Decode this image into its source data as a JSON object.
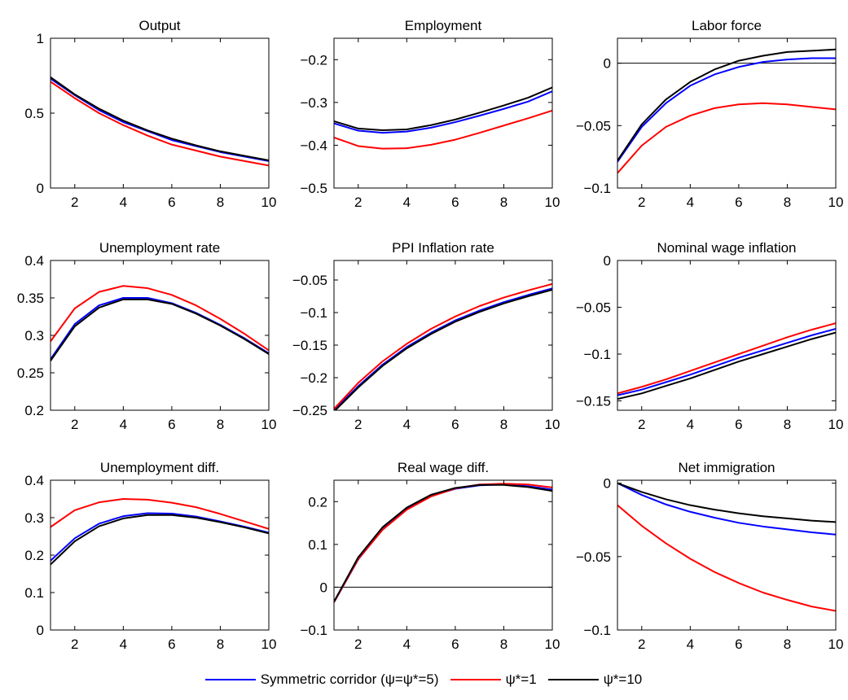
{
  "colors": {
    "blue": "#0000ff",
    "red": "#ff0000",
    "black": "#000000"
  },
  "legend": {
    "placement": "bottom",
    "items": [
      {
        "label": "Symmetric corridor (ψ=ψ*=5)",
        "color": "#0000ff"
      },
      {
        "label": "ψ*=1",
        "color": "#ff0000"
      },
      {
        "label": "ψ*=10",
        "color": "#000000"
      }
    ]
  },
  "chart_data": [
    {
      "type": "line",
      "title": "Output",
      "x": [
        1,
        2,
        3,
        4,
        5,
        6,
        7,
        8,
        9,
        10
      ],
      "xlim": [
        1,
        10
      ],
      "xticks": [
        2,
        4,
        6,
        8,
        10
      ],
      "xtick_labels": [
        "2",
        "4",
        "6",
        "8",
        "10"
      ],
      "ylim": [
        0,
        1
      ],
      "yticks": [
        0,
        0.5,
        1
      ],
      "ytick_labels": [
        "0",
        "0.5",
        "1"
      ],
      "zero_line": false,
      "series": [
        {
          "name": "Symmetric corridor (ψ=ψ*=5)",
          "color": "#0000ff",
          "values": [
            0.73,
            0.62,
            0.52,
            0.44,
            0.38,
            0.32,
            0.28,
            0.24,
            0.21,
            0.18
          ]
        },
        {
          "name": "ψ*=1",
          "color": "#ff0000",
          "values": [
            0.71,
            0.6,
            0.5,
            0.42,
            0.35,
            0.29,
            0.25,
            0.21,
            0.18,
            0.15
          ]
        },
        {
          "name": "ψ*=10",
          "color": "#000000",
          "values": [
            0.74,
            0.625,
            0.53,
            0.45,
            0.385,
            0.33,
            0.285,
            0.245,
            0.215,
            0.185
          ]
        }
      ]
    },
    {
      "type": "line",
      "title": "Employment",
      "x": [
        1,
        2,
        3,
        4,
        5,
        6,
        7,
        8,
        9,
        10
      ],
      "xlim": [
        1,
        10
      ],
      "xticks": [
        2,
        4,
        6,
        8,
        10
      ],
      "xtick_labels": [
        "2",
        "4",
        "6",
        "8",
        "10"
      ],
      "ylim": [
        -0.5,
        -0.15
      ],
      "yticks": [
        -0.5,
        -0.4,
        -0.3,
        -0.2
      ],
      "ytick_labels": [
        "−0.5",
        "−0.4",
        "−0.3",
        "−0.2"
      ],
      "zero_line": false,
      "series": [
        {
          "name": "Symmetric corridor (ψ=ψ*=5)",
          "color": "#0000ff",
          "values": [
            -0.349,
            -0.366,
            -0.371,
            -0.368,
            -0.359,
            -0.346,
            -0.331,
            -0.315,
            -0.298,
            -0.274
          ]
        },
        {
          "name": "ψ*=1",
          "color": "#ff0000",
          "values": [
            -0.382,
            -0.402,
            -0.408,
            -0.407,
            -0.399,
            -0.387,
            -0.371,
            -0.354,
            -0.337,
            -0.319
          ]
        },
        {
          "name": "ψ*=10",
          "color": "#000000",
          "values": [
            -0.344,
            -0.361,
            -0.365,
            -0.363,
            -0.353,
            -0.34,
            -0.324,
            -0.307,
            -0.289,
            -0.265
          ]
        }
      ]
    },
    {
      "type": "line",
      "title": "Labor force",
      "x": [
        1,
        2,
        3,
        4,
        5,
        6,
        7,
        8,
        9,
        10
      ],
      "xlim": [
        1,
        10
      ],
      "xticks": [
        2,
        4,
        6,
        8,
        10
      ],
      "xtick_labels": [
        "2",
        "4",
        "6",
        "8",
        "10"
      ],
      "ylim": [
        -0.1,
        0.02
      ],
      "yticks": [
        -0.1,
        -0.05,
        0
      ],
      "ytick_labels": [
        "−0.1",
        "−0.05",
        "0"
      ],
      "zero_line": true,
      "series": [
        {
          "name": "Symmetric corridor (ψ=ψ*=5)",
          "color": "#0000ff",
          "values": [
            -0.079,
            -0.051,
            -0.032,
            -0.018,
            -0.009,
            -0.003,
            0.001,
            0.003,
            0.004,
            0.004
          ]
        },
        {
          "name": "ψ*=1",
          "color": "#ff0000",
          "values": [
            -0.088,
            -0.066,
            -0.051,
            -0.042,
            -0.036,
            -0.033,
            -0.032,
            -0.033,
            -0.035,
            -0.037
          ]
        },
        {
          "name": "ψ*=10",
          "color": "#000000",
          "values": [
            -0.078,
            -0.049,
            -0.029,
            -0.015,
            -0.005,
            0.002,
            0.006,
            0.009,
            0.01,
            0.011
          ]
        }
      ]
    },
    {
      "type": "line",
      "title": "Unemployment rate",
      "x": [
        1,
        2,
        3,
        4,
        5,
        6,
        7,
        8,
        9,
        10
      ],
      "xlim": [
        1,
        10
      ],
      "xticks": [
        2,
        4,
        6,
        8,
        10
      ],
      "xtick_labels": [
        "2",
        "4",
        "6",
        "8",
        "10"
      ],
      "ylim": [
        0.2,
        0.4
      ],
      "yticks": [
        0.2,
        0.25,
        0.3,
        0.35,
        0.4
      ],
      "ytick_labels": [
        "0.2",
        "0.25",
        "0.3",
        "0.35",
        "0.4"
      ],
      "zero_line": false,
      "series": [
        {
          "name": "Symmetric corridor (ψ=ψ*=5)",
          "color": "#0000ff",
          "values": [
            0.268,
            0.315,
            0.34,
            0.35,
            0.35,
            0.343,
            0.33,
            0.314,
            0.296,
            0.276
          ]
        },
        {
          "name": "ψ*=1",
          "color": "#ff0000",
          "values": [
            0.292,
            0.336,
            0.358,
            0.366,
            0.363,
            0.354,
            0.34,
            0.322,
            0.302,
            0.28
          ]
        },
        {
          "name": "ψ*=10",
          "color": "#000000",
          "values": [
            0.266,
            0.312,
            0.337,
            0.348,
            0.348,
            0.342,
            0.329,
            0.313,
            0.295,
            0.275
          ]
        }
      ]
    },
    {
      "type": "line",
      "title": "PPI Inflation rate",
      "x": [
        1,
        2,
        3,
        4,
        5,
        6,
        7,
        8,
        9,
        10
      ],
      "xlim": [
        1,
        10
      ],
      "xticks": [
        2,
        4,
        6,
        8,
        10
      ],
      "xtick_labels": [
        "2",
        "4",
        "6",
        "8",
        "10"
      ],
      "ylim": [
        -0.25,
        -0.02
      ],
      "yticks": [
        -0.25,
        -0.2,
        -0.15,
        -0.1,
        -0.05
      ],
      "ytick_labels": [
        "−0.25",
        "−0.2",
        "−0.15",
        "−0.1",
        "−0.05"
      ],
      "zero_line": false,
      "series": [
        {
          "name": "Symmetric corridor (ψ=ψ*=5)",
          "color": "#0000ff",
          "values": [
            -0.25,
            -0.213,
            -0.18,
            -0.153,
            -0.131,
            -0.112,
            -0.097,
            -0.084,
            -0.073,
            -0.063
          ]
        },
        {
          "name": "ψ*=1",
          "color": "#ff0000",
          "values": [
            -0.248,
            -0.208,
            -0.175,
            -0.148,
            -0.125,
            -0.106,
            -0.09,
            -0.077,
            -0.066,
            -0.056
          ]
        },
        {
          "name": "ψ*=10",
          "color": "#000000",
          "values": [
            -0.252,
            -0.215,
            -0.182,
            -0.155,
            -0.133,
            -0.114,
            -0.099,
            -0.086,
            -0.075,
            -0.065
          ]
        }
      ]
    },
    {
      "type": "line",
      "title": "Nominal wage inflation",
      "x": [
        1,
        2,
        3,
        4,
        5,
        6,
        7,
        8,
        9,
        10
      ],
      "xlim": [
        1,
        10
      ],
      "xticks": [
        2,
        4,
        6,
        8,
        10
      ],
      "xtick_labels": [
        "2",
        "4",
        "6",
        "8",
        "10"
      ],
      "ylim": [
        -0.16,
        0
      ],
      "yticks": [
        -0.15,
        -0.1,
        -0.05,
        0
      ],
      "ytick_labels": [
        "−0.15",
        "−0.1",
        "−0.05",
        "0"
      ],
      "zero_line": false,
      "series": [
        {
          "name": "Symmetric corridor (ψ=ψ*=5)",
          "color": "#0000ff",
          "values": [
            -0.144,
            -0.138,
            -0.13,
            -0.122,
            -0.113,
            -0.104,
            -0.096,
            -0.088,
            -0.08,
            -0.073
          ]
        },
        {
          "name": "ψ*=1",
          "color": "#ff0000",
          "values": [
            -0.142,
            -0.135,
            -0.127,
            -0.118,
            -0.109,
            -0.1,
            -0.091,
            -0.082,
            -0.074,
            -0.067
          ]
        },
        {
          "name": "ψ*=10",
          "color": "#000000",
          "values": [
            -0.148,
            -0.142,
            -0.134,
            -0.126,
            -0.117,
            -0.108,
            -0.1,
            -0.092,
            -0.084,
            -0.077
          ]
        }
      ]
    },
    {
      "type": "line",
      "title": "Unemployment diff.",
      "x": [
        1,
        2,
        3,
        4,
        5,
        6,
        7,
        8,
        9,
        10
      ],
      "xlim": [
        1,
        10
      ],
      "xticks": [
        2,
        4,
        6,
        8,
        10
      ],
      "xtick_labels": [
        "2",
        "4",
        "6",
        "8",
        "10"
      ],
      "ylim": [
        0,
        0.4
      ],
      "yticks": [
        0,
        0.1,
        0.2,
        0.3,
        0.4
      ],
      "ytick_labels": [
        "0",
        "0.1",
        "0.2",
        "0.3",
        "0.4"
      ],
      "zero_line": false,
      "series": [
        {
          "name": "Symmetric corridor (ψ=ψ*=5)",
          "color": "#0000ff",
          "values": [
            0.185,
            0.245,
            0.284,
            0.304,
            0.312,
            0.311,
            0.303,
            0.29,
            0.276,
            0.26
          ]
        },
        {
          "name": "ψ*=1",
          "color": "#ff0000",
          "values": [
            0.275,
            0.32,
            0.341,
            0.35,
            0.348,
            0.34,
            0.328,
            0.31,
            0.29,
            0.27
          ]
        },
        {
          "name": "ψ*=10",
          "color": "#000000",
          "values": [
            0.175,
            0.237,
            0.277,
            0.298,
            0.307,
            0.307,
            0.3,
            0.288,
            0.274,
            0.258
          ]
        }
      ]
    },
    {
      "type": "line",
      "title": "Real wage diff.",
      "x": [
        1,
        2,
        3,
        4,
        5,
        6,
        7,
        8,
        9,
        10
      ],
      "xlim": [
        1,
        10
      ],
      "xticks": [
        2,
        4,
        6,
        8,
        10
      ],
      "xtick_labels": [
        "2",
        "4",
        "6",
        "8",
        "10"
      ],
      "ylim": [
        -0.1,
        0.25
      ],
      "yticks": [
        -0.1,
        0,
        0.1,
        0.2
      ],
      "ytick_labels": [
        "−0.1",
        "0",
        "0.1",
        "0.2"
      ],
      "zero_line": true,
      "series": [
        {
          "name": "Symmetric corridor (ψ=ψ*=5)",
          "color": "#0000ff",
          "values": [
            -0.035,
            0.065,
            0.135,
            0.182,
            0.213,
            0.23,
            0.238,
            0.24,
            0.236,
            0.228
          ]
        },
        {
          "name": "ψ*=1",
          "color": "#ff0000",
          "values": [
            -0.035,
            0.066,
            0.134,
            0.181,
            0.212,
            0.231,
            0.24,
            0.242,
            0.24,
            0.233
          ]
        },
        {
          "name": "ψ*=10",
          "color": "#000000",
          "values": [
            -0.034,
            0.07,
            0.14,
            0.186,
            0.216,
            0.232,
            0.239,
            0.239,
            0.234,
            0.225
          ]
        }
      ]
    },
    {
      "type": "line",
      "title": "Net immigration",
      "x": [
        1,
        2,
        3,
        4,
        5,
        6,
        7,
        8,
        9,
        10
      ],
      "xlim": [
        1,
        10
      ],
      "xticks": [
        2,
        4,
        6,
        8,
        10
      ],
      "xtick_labels": [
        "2",
        "4",
        "6",
        "8",
        "10"
      ],
      "ylim": [
        -0.1,
        0.002
      ],
      "yticks": [
        -0.1,
        -0.05,
        0
      ],
      "ytick_labels": [
        "−0.1",
        "−0.05",
        "0"
      ],
      "zero_line": false,
      "series": [
        {
          "name": "Symmetric corridor (ψ=ψ*=5)",
          "color": "#0000ff",
          "values": [
            0,
            -0.008,
            -0.0145,
            -0.0195,
            -0.0235,
            -0.027,
            -0.0295,
            -0.0315,
            -0.0335,
            -0.035
          ]
        },
        {
          "name": "ψ*=1",
          "color": "#ff0000",
          "values": [
            -0.015,
            -0.029,
            -0.041,
            -0.0515,
            -0.0605,
            -0.068,
            -0.0745,
            -0.0795,
            -0.084,
            -0.087
          ]
        },
        {
          "name": "ψ*=10",
          "color": "#000000",
          "values": [
            0,
            -0.006,
            -0.011,
            -0.015,
            -0.018,
            -0.0205,
            -0.0225,
            -0.024,
            -0.0255,
            -0.0265
          ]
        }
      ]
    }
  ]
}
